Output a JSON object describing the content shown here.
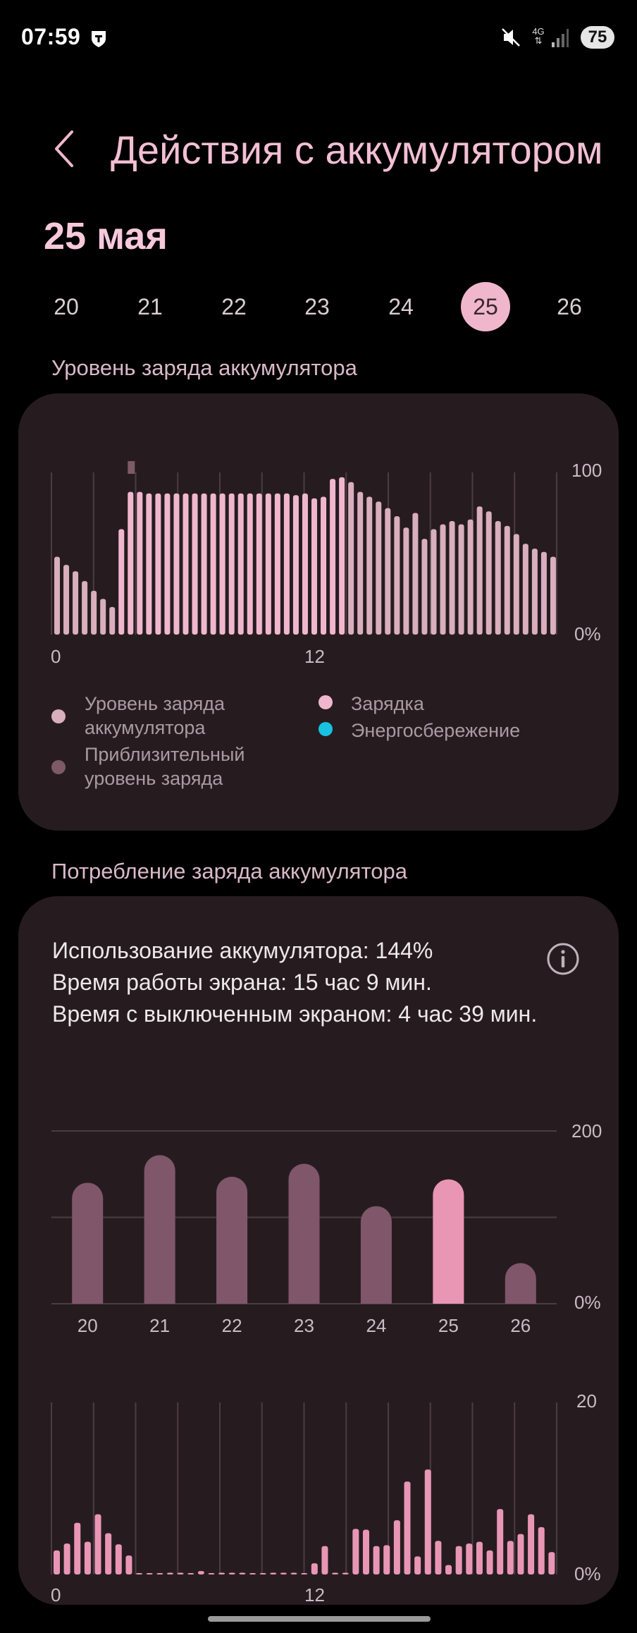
{
  "status_bar": {
    "time": "07:59",
    "network": "4G",
    "battery": "75",
    "icons": [
      "shield-icon",
      "mute-icon",
      "signal-icon"
    ]
  },
  "header": {
    "title": "Действия с аккумулятором",
    "date": "25 мая"
  },
  "day_picker": {
    "days": [
      "20",
      "21",
      "22",
      "23",
      "24",
      "25",
      "26"
    ],
    "selected": "25"
  },
  "colors": {
    "accent": "#f0b7cc",
    "charging": "#f0b7cc",
    "level": "#d9aebd",
    "estimated": "#7e5a66",
    "power_saving": "#19c2e0",
    "card_bg": "#261c20"
  },
  "level_section": {
    "title": "Уровень заряда аккумулятора",
    "legend": {
      "level": "Уровень заряда\nаккумулятора",
      "estimated": "Приблизительный\nуровень заряда",
      "charging": "Зарядка",
      "power_saving": "Энергосбережение"
    }
  },
  "usage_section": {
    "title": "Потребление заряда аккумулятора",
    "stats": [
      "Использование аккумулятора: 144%",
      "Время работы экрана: 15 час 9 мин.",
      "Время с выключенным экраном: 4 час 39 мин."
    ]
  },
  "chart_data": [
    {
      "type": "bar",
      "title": "Уровень заряда аккумулятора",
      "x_ticks": [
        "0",
        "12"
      ],
      "y_ticks": [
        "100",
        "0%"
      ],
      "ylim": [
        0,
        100
      ],
      "values": [
        48,
        43,
        39,
        33,
        27,
        22,
        17,
        65,
        88,
        88,
        87,
        87,
        87,
        87,
        87,
        87,
        87,
        87,
        87,
        87,
        87,
        87,
        87,
        87,
        87,
        87,
        86,
        87,
        84,
        85,
        96,
        97,
        94,
        88,
        85,
        82,
        78,
        73,
        66,
        75,
        59,
        65,
        68,
        70,
        68,
        71,
        79,
        76,
        70,
        67,
        62,
        56,
        53,
        51,
        48
      ]
    },
    {
      "type": "bar",
      "title": "Потребление заряда аккумулятора",
      "categories": [
        "20",
        "21",
        "22",
        "23",
        "24",
        "25",
        "26"
      ],
      "values": [
        140,
        172,
        147,
        162,
        113,
        144,
        47
      ],
      "y_ticks": [
        "200",
        "0%"
      ],
      "ylim": [
        0,
        200
      ],
      "highlighted": "25"
    },
    {
      "type": "bar",
      "x_ticks": [
        "0",
        "12"
      ],
      "y_ticks": [
        "20",
        "0%"
      ],
      "ylim": [
        0,
        20
      ],
      "values": [
        2.8,
        3.6,
        6.0,
        3.8,
        7.0,
        4.8,
        3.5,
        2.2,
        0,
        0,
        0,
        0.2,
        0.2,
        0,
        0.4,
        0,
        0.2,
        0.2,
        0.2,
        0,
        0,
        0.2,
        0.2,
        0.2,
        0,
        1.3,
        3.3,
        0.2,
        0.2,
        5.3,
        5.2,
        3.3,
        3.4,
        6.3,
        10.8,
        2.1,
        12.2,
        3.9,
        1.1,
        3.3,
        3.6,
        3.8,
        2.8,
        7.6,
        3.9,
        4.7,
        7.0,
        5.5,
        2.6
      ]
    }
  ]
}
